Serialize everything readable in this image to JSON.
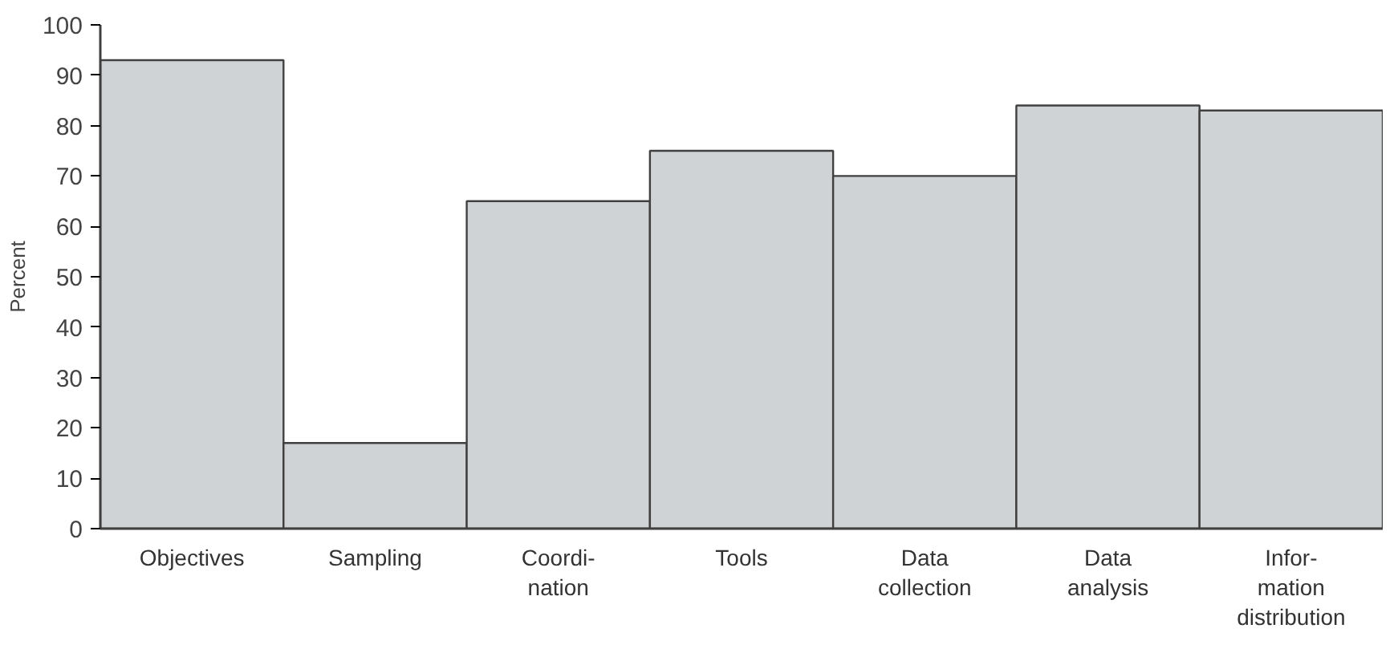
{
  "chart_data": {
    "type": "bar",
    "ylabel": "Percent",
    "categories": [
      "Objectives",
      "Sampling",
      "Coordi-\nnation",
      "Tools",
      "Data\ncollection",
      "Data\nanalysis",
      "Infor-\nmation\ndistribution"
    ],
    "values": [
      93,
      17,
      65,
      75,
      70,
      84,
      83
    ],
    "color": "#d0d3d5",
    "ylim": [
      0,
      100
    ],
    "yticks": [
      0,
      10,
      20,
      30,
      40,
      50,
      60,
      70,
      80,
      90,
      100
    ],
    "grid": false
  }
}
